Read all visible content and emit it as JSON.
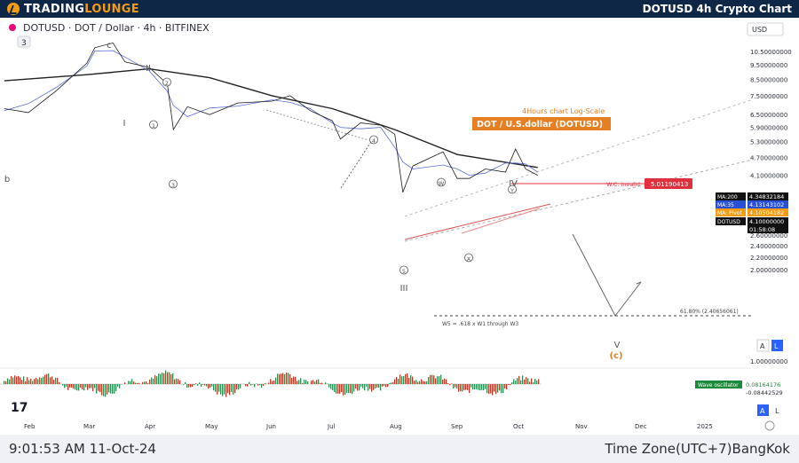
{
  "header": {
    "logo_main": "TRADING",
    "logo_accent": "LOUNGE",
    "title": "DOTUSD 4h Crypto Chart"
  },
  "symbol_line": "DOTUSD · DOT / Dollar · 4h · BITFINEX",
  "indicator_count": "3",
  "currency": "USD",
  "chart_subtitle": "4Hours chart  Log-Scale",
  "chart_title": "DOT / U.S.dollar (DOTUSD)",
  "wc_invalid_label": "W.C. invalid",
  "wc_invalid_value": "5.01190413",
  "fib_label": "61.80% (2.40656061)",
  "w5_note": "W5 = .618 x W1 through W3",
  "wave_oscillator": {
    "label": "Wave oscillator",
    "value1": "0.08164176",
    "value2": "-0.08442529"
  },
  "price_tags": [
    {
      "label": "MA:200",
      "value": "4.34832184",
      "bg": "#111111"
    },
    {
      "label": "MA:35",
      "value": "4.13143102",
      "bg": "#2750d6"
    },
    {
      "label": "MA: Pivot",
      "value": "4.10504182",
      "bg": "#f39c12"
    },
    {
      "label": "DOTUSD",
      "value": "4.10000000",
      "bg": "#111111"
    },
    {
      "label": "",
      "value": "01:58:08",
      "bg": "#111111"
    }
  ],
  "buttons": {
    "auto": "A",
    "log": "L"
  },
  "colors": {
    "header_bg": "#0f2746",
    "accent": "#f39c12",
    "price_line": "#1a1a1a",
    "ma_line": "#222222",
    "channel": "#aaaaaa",
    "invalid": "#e0303e"
  },
  "wave_labels": [
    "b",
    "c",
    "II",
    "I",
    "1",
    "2",
    "3",
    "4",
    "5",
    "III",
    "W",
    "X",
    "Y",
    "IV",
    "V",
    "(c)"
  ],
  "footer": {
    "time": "9:01:53 AM 11-Oct-24",
    "timezone": "Time Zone(UTC+7)BangKok"
  },
  "chart_data": {
    "type": "line",
    "title": "DOT / U.S.dollar (DOTUSD)",
    "subtitle": "4Hours chart  Log-Scale",
    "log_scale": true,
    "x_ticks": [
      "Feb",
      "Mar",
      "Apr",
      "May",
      "Jun",
      "Jul",
      "Aug",
      "Sep",
      "Oct",
      "Nov",
      "Dec",
      "2025"
    ],
    "y_ticks": [
      "10.50000000",
      "9.50000000",
      "8.50000000",
      "7.50000000",
      "6.50000000",
      "5.90000000",
      "5.30000000",
      "4.70000000",
      "4.10000000",
      "3.50000000",
      "3.20000000",
      "2.90000000",
      "2.60000000",
      "2.40000000",
      "2.20000000",
      "2.00000000",
      "1.00000000"
    ],
    "series": [
      {
        "name": "DOTUSD",
        "x": [
          "Jan 20",
          "Feb 1",
          "Feb 15",
          "Mar 1",
          "Mar 5",
          "Mar 14",
          "Mar 20",
          "Apr 1",
          "Apr 10",
          "Apr 13",
          "Apr 20",
          "May 1",
          "May 15",
          "Jun 1",
          "Jun 10",
          "Jun 20",
          "Jul 1",
          "Jul 5",
          "Jul 15",
          "Jul 25",
          "Aug 1",
          "Aug 5",
          "Aug 10",
          "Aug 25",
          "Sep 1",
          "Sep 7",
          "Sep 15",
          "Sep 25",
          "Sep 30",
          "Oct 5",
          "Oct 11"
        ],
        "values": [
          6.8,
          6.6,
          7.8,
          9.6,
          10.8,
          11.2,
          9.7,
          9.3,
          8.2,
          5.8,
          6.9,
          6.5,
          7.1,
          7.2,
          7.5,
          6.7,
          6.2,
          5.4,
          6.1,
          6.0,
          5.6,
          3.6,
          4.4,
          4.9,
          4.0,
          4.0,
          4.3,
          4.2,
          5.0,
          4.3,
          4.1
        ]
      },
      {
        "name": "MA:200",
        "x": [
          "Jan 20",
          "Mar 1",
          "Apr 1",
          "May 1",
          "Jun 1",
          "Jul 1",
          "Aug 1",
          "Sep 1",
          "Oct 11"
        ],
        "values": [
          8.4,
          8.8,
          9.2,
          8.6,
          7.5,
          6.8,
          5.8,
          4.8,
          4.35
        ]
      }
    ],
    "annotations": [
      {
        "text": "W.C. invalid",
        "value": 5.01190413
      },
      {
        "text": "61.80% (2.40656061)",
        "value": 2.40656061
      },
      {
        "text": "W5 = .618 x W1 through W3"
      }
    ]
  }
}
